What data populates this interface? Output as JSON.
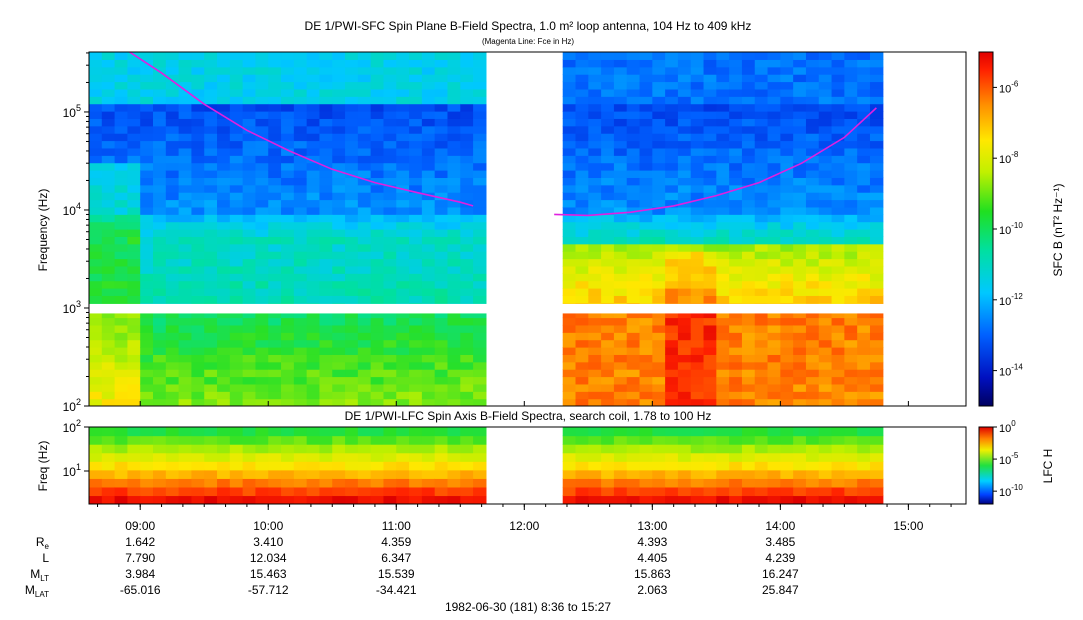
{
  "figure": {
    "top_title": "DE 1/PWI-SFC  Spin Plane B-Field Spectra, 1.0 m² loop antenna, 104 Hz to 409 kHz",
    "top_subtitle": "(Magenta Line: Fce in Hz)",
    "bottom_title": "DE 1/PWI-LFC  Spin Axis B-Field Spectra, search coil, 1.78 to 100 Hz",
    "footer": "1982-06-30 (181) 8:36 to 15:27"
  },
  "chart_data": [
    {
      "type": "heatmap",
      "title": "DE 1/PWI-SFC  Spin Plane B-Field Spectra, 1.0 m² loop antenna, 104 Hz to 409 kHz",
      "subtitle": "(Magenta Line: Fce in Hz)",
      "ylabel": "Frequency (Hz)",
      "yscale": "log",
      "ylim": [
        100,
        409000
      ],
      "y_ticks": [
        "10^2",
        "10^3",
        "10^4",
        "10^5"
      ],
      "xlim": [
        "08:36",
        "15:27"
      ],
      "x_ticks": [
        "09:00",
        "10:00",
        "11:00",
        "12:00",
        "13:00",
        "14:00",
        "15:00"
      ],
      "data_gaps": [
        [
          "11:39",
          "12:14"
        ],
        [
          "14:46",
          "15:27"
        ]
      ],
      "colorbar": {
        "label": "SFC B (nT² Hz⁻¹)",
        "scale": "log",
        "range": [
          1e-15,
          1e-05
        ],
        "ticks": [
          "10^-6",
          "10^-8",
          "10^-10",
          "10^-12",
          "10^-14"
        ]
      },
      "overlay_line": {
        "name": "Fce",
        "color": "#e020e0",
        "points": [
          [
            "08:55",
            409000
          ],
          [
            "09:10",
            250000
          ],
          [
            "09:30",
            120000
          ],
          [
            "09:50",
            65000
          ],
          [
            "10:10",
            40000
          ],
          [
            "10:30",
            26000
          ],
          [
            "10:50",
            19000
          ],
          [
            "11:10",
            15000
          ],
          [
            "11:30",
            12000
          ],
          [
            "11:36",
            11000
          ],
          [
            "12:14",
            9000
          ],
          [
            "12:30",
            8800
          ],
          [
            "12:50",
            9500
          ],
          [
            "13:10",
            11000
          ],
          [
            "13:30",
            14000
          ],
          [
            "13:50",
            19000
          ],
          [
            "14:10",
            30000
          ],
          [
            "14:30",
            55000
          ],
          [
            "14:45",
            110000
          ]
        ]
      }
    },
    {
      "type": "heatmap",
      "title": "DE 1/PWI-LFC  Spin Axis B-Field Spectra, search coil, 1.78 to 100 Hz",
      "ylabel": "Freq (Hz)",
      "yscale": "log",
      "ylim": [
        1.78,
        100
      ],
      "y_ticks": [
        "10^1",
        "10^2"
      ],
      "xlim": [
        "08:36",
        "15:27"
      ],
      "data_gaps": [
        [
          "11:39",
          "12:14"
        ],
        [
          "14:46",
          "15:27"
        ]
      ],
      "colorbar": {
        "label": "LFC H",
        "scale": "log",
        "range": [
          1e-12,
          1
        ],
        "ticks": [
          "10^0",
          "10^-5",
          "10^-10"
        ]
      }
    }
  ],
  "ephemeris": {
    "times": [
      "09:00",
      "10:00",
      "11:00",
      "12:00",
      "13:00",
      "14:00",
      "15:00"
    ],
    "rows": [
      {
        "label": "R",
        "sub": "e",
        "values": [
          "1.642",
          "3.410",
          "4.359",
          "",
          "4.393",
          "3.485",
          ""
        ]
      },
      {
        "label": "L",
        "sub": "",
        "values": [
          "7.790",
          "12.034",
          "6.347",
          "",
          "4.405",
          "4.239",
          ""
        ]
      },
      {
        "label": "M",
        "sub": "LT",
        "values": [
          "3.984",
          "15.463",
          "15.539",
          "",
          "15.863",
          "16.247",
          ""
        ]
      },
      {
        "label": "M",
        "sub": "LAT",
        "values": [
          "-65.016",
          "-57.712",
          "-34.421",
          "",
          "2.063",
          "25.847",
          ""
        ]
      }
    ]
  }
}
